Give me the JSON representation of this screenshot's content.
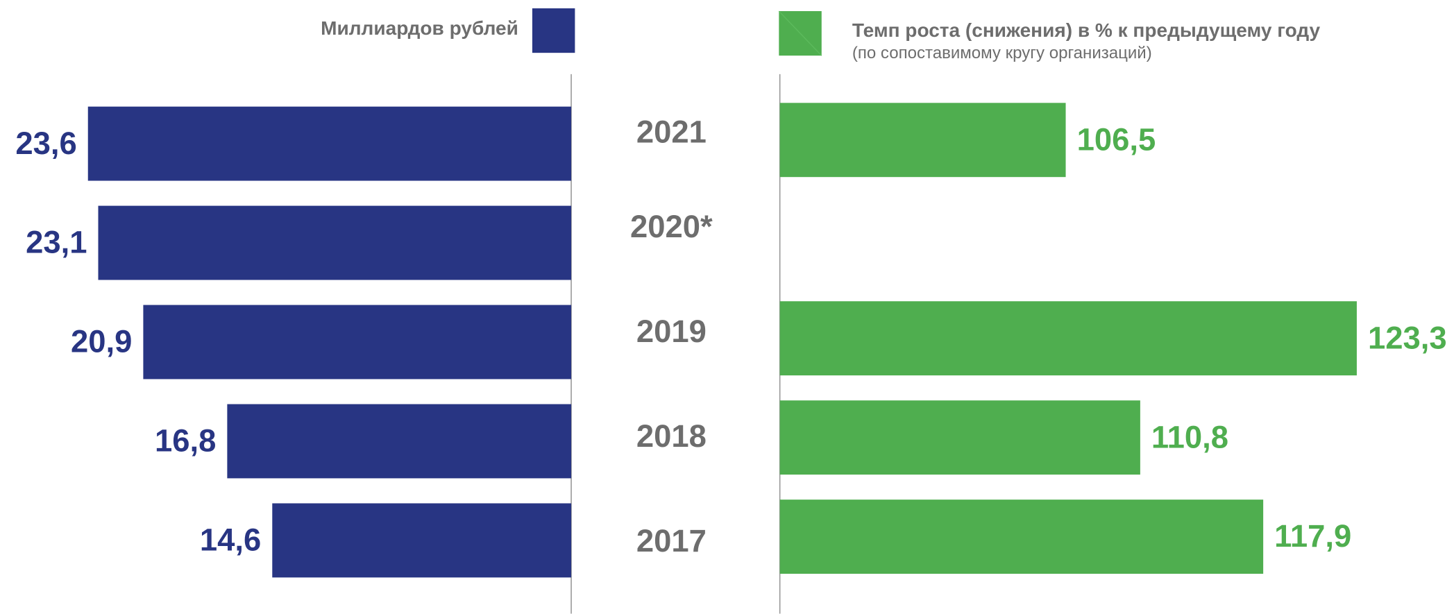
{
  "chart_data": {
    "type": "bar",
    "orientation": "horizontal",
    "categories": [
      "2021",
      "2020*",
      "2019",
      "2018",
      "2017"
    ],
    "series": [
      {
        "name": "Миллиардов рублей",
        "color": "#283583",
        "values": [
          23.6,
          23.1,
          20.9,
          16.8,
          14.6
        ],
        "value_labels": [
          "23,6",
          "23,1",
          "20,9",
          "16,8",
          "14,6"
        ],
        "xlim": [
          0,
          24
        ]
      },
      {
        "name": "Темп роста (снижения) в % к предыдущему году",
        "note": "(по сопоставимому кругу организаций)",
        "color": "#4fae4f",
        "values": [
          106.5,
          null,
          123.3,
          110.8,
          117.9
        ],
        "value_labels": [
          "106,5",
          null,
          "123,3",
          "110,8",
          "117,9"
        ],
        "xlim": [
          90,
          128
        ]
      }
    ]
  }
}
